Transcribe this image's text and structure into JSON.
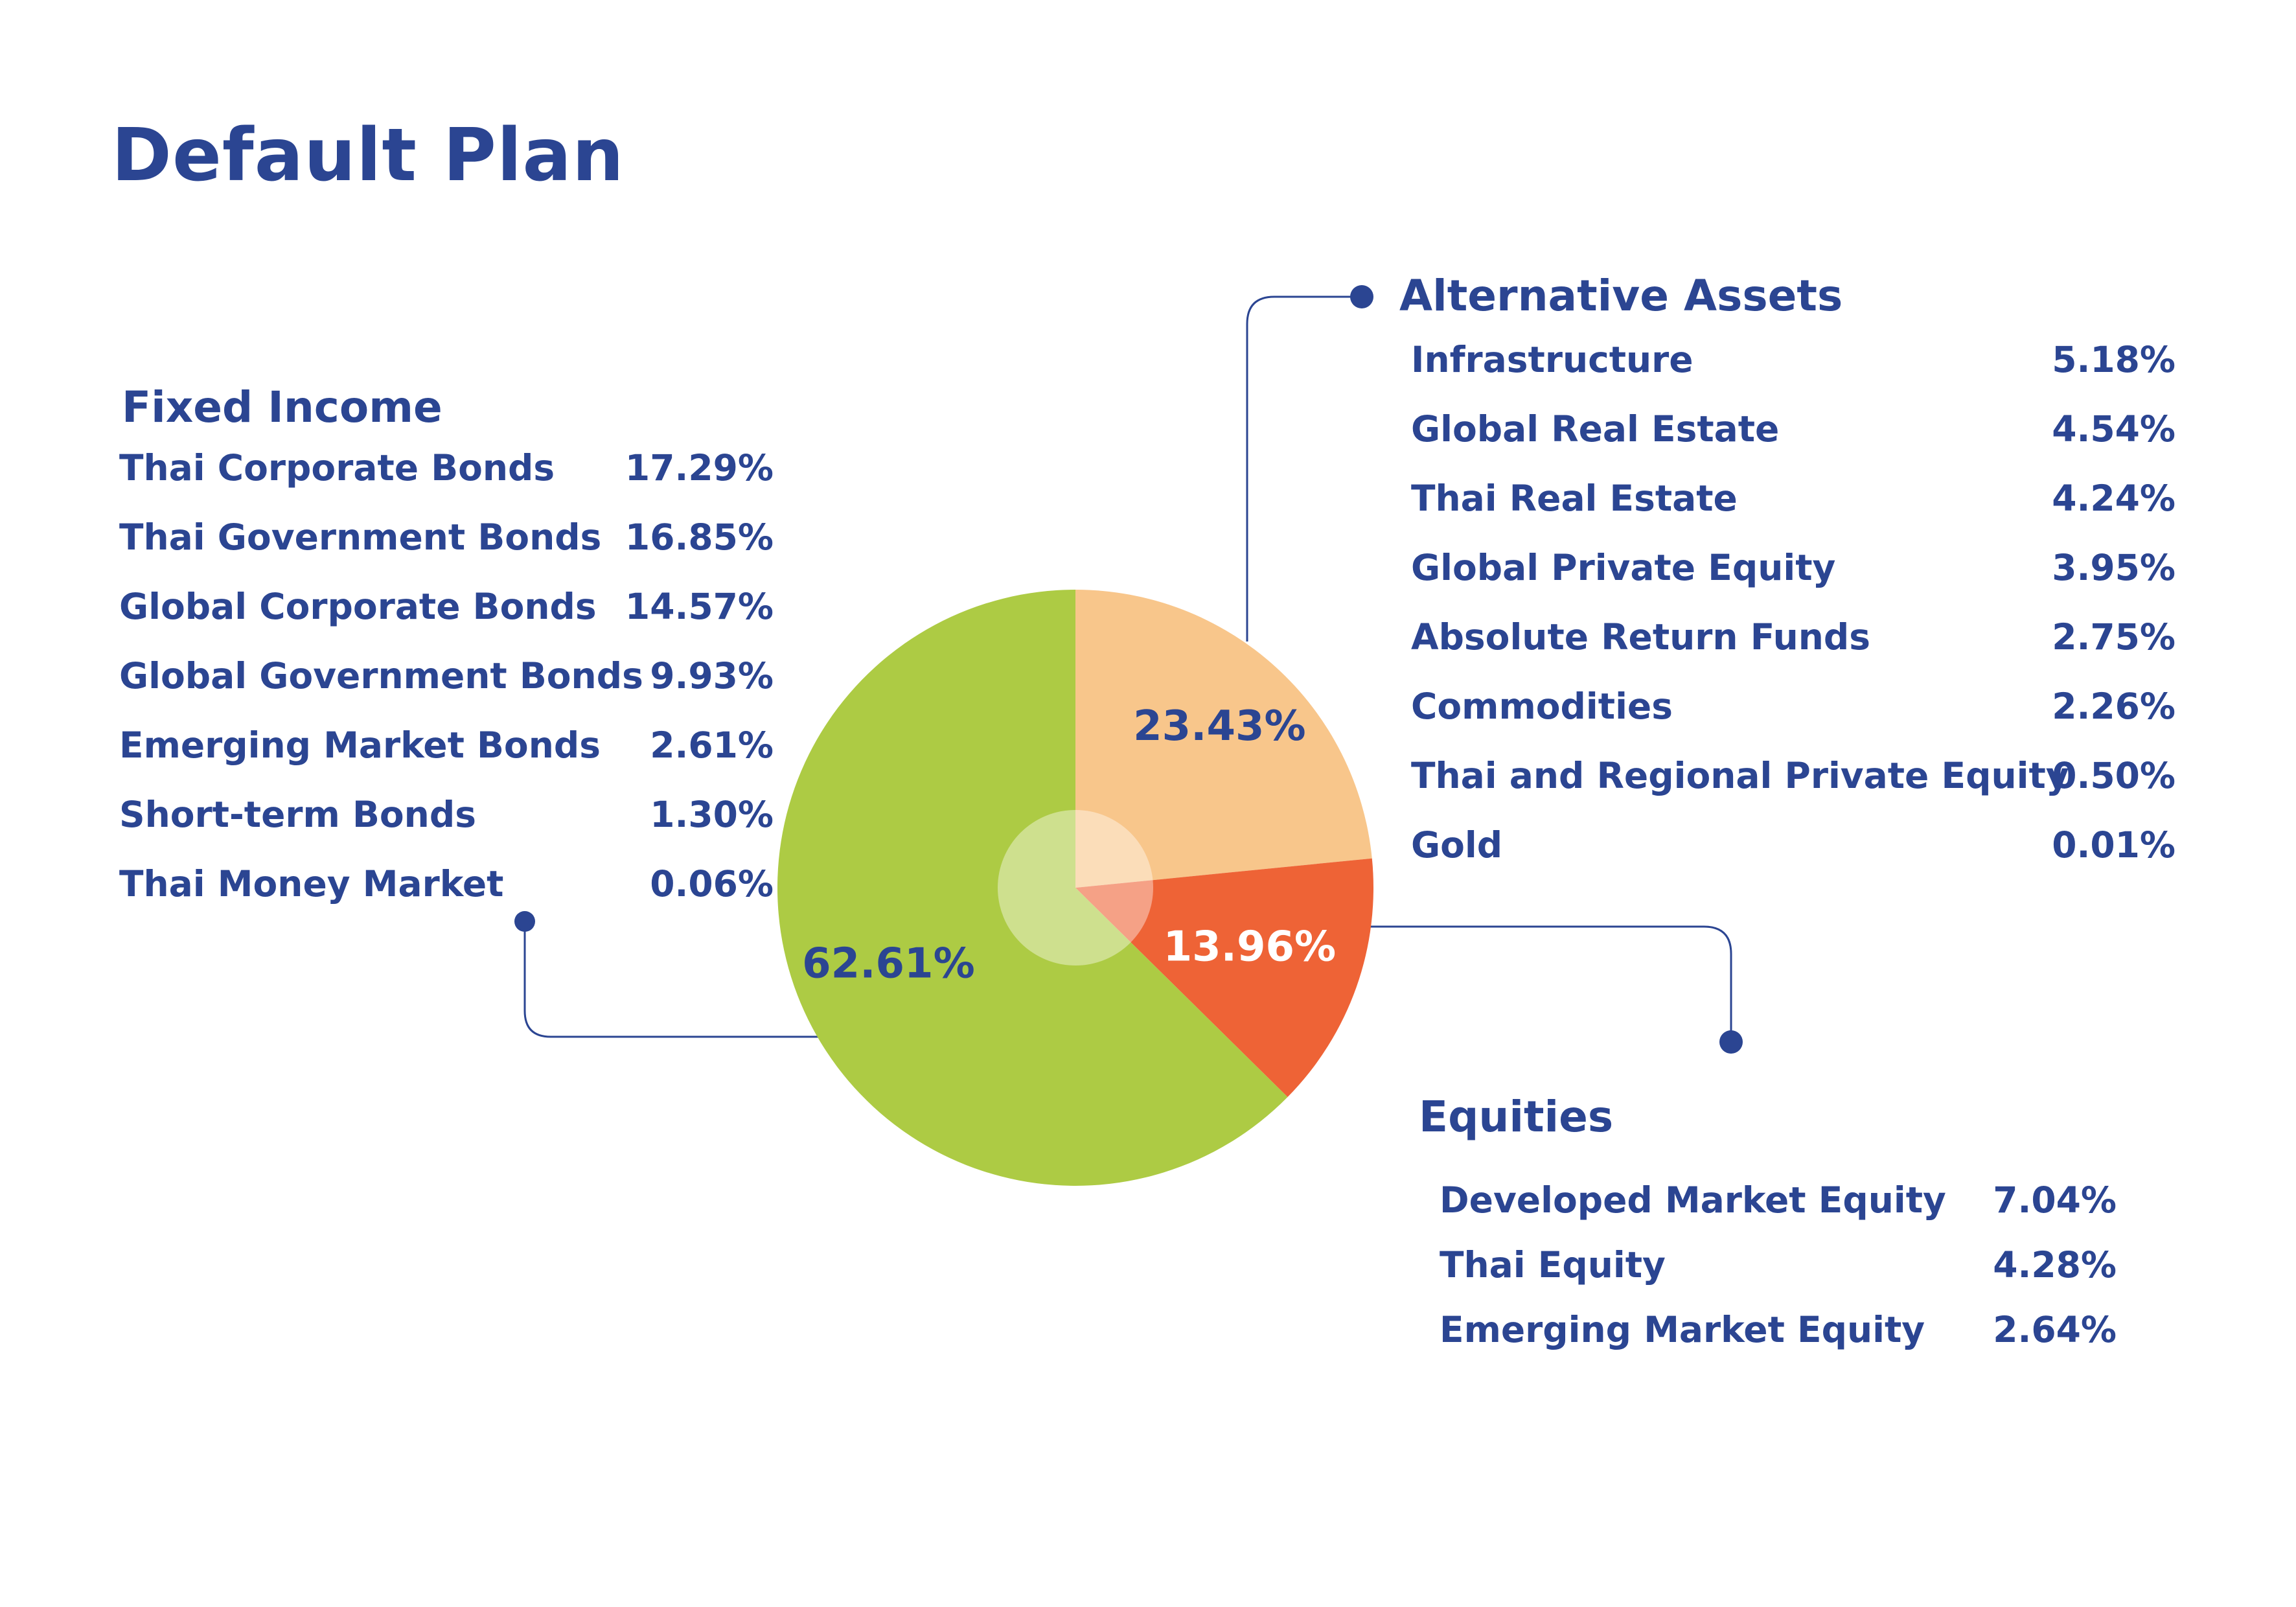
{
  "title": "Default Plan",
  "colors": {
    "text": "#2b4592",
    "fixed_income": "#adcb44",
    "alternative_assets": "#f8c68b",
    "equities": "#ee6336",
    "center_overlay": "#ffffff"
  },
  "chart_data": {
    "type": "pie",
    "start_angle_deg": 0,
    "direction": "clockwise",
    "slices": [
      {
        "name": "Alternative Assets",
        "value": 23.43,
        "label": "23.43%",
        "color": "#f8c68b",
        "label_color": "#2b4592"
      },
      {
        "name": "Equities",
        "value": 13.96,
        "label": "13.96%",
        "color": "#ee6336",
        "label_color": "#ffffff"
      },
      {
        "name": "Fixed Income",
        "value": 62.61,
        "label": "62.61%",
        "color": "#adcb44",
        "label_color": "#2b4592"
      }
    ]
  },
  "groups": {
    "fixed_income": {
      "title": "Fixed Income",
      "items": [
        {
          "label": "Thai Corporate Bonds",
          "value": "17.29%"
        },
        {
          "label": "Thai Government Bonds",
          "value": "16.85%"
        },
        {
          "label": "Global Corporate Bonds",
          "value": "14.57%"
        },
        {
          "label": "Global Government Bonds",
          "value": "9.93%"
        },
        {
          "label": "Emerging Market Bonds",
          "value": "2.61%"
        },
        {
          "label": "Short-term Bonds",
          "value": "1.30%"
        },
        {
          "label": "Thai Money Market",
          "value": "0.06%"
        }
      ]
    },
    "alternative_assets": {
      "title": "Alternative Assets",
      "items": [
        {
          "label": "Infrastructure",
          "value": "5.18%"
        },
        {
          "label": "Global Real Estate",
          "value": "4.54%"
        },
        {
          "label": "Thai Real Estate",
          "value": "4.24%"
        },
        {
          "label": "Global Private Equity",
          "value": "3.95%"
        },
        {
          "label": "Absolute Return Funds",
          "value": "2.75%"
        },
        {
          "label": "Commodities",
          "value": "2.26%"
        },
        {
          "label": "Thai and Regional Private Equity",
          "value": "0.50%"
        },
        {
          "label": "Gold",
          "value": "0.01%"
        }
      ]
    },
    "equities": {
      "title": "Equities",
      "items": [
        {
          "label": "Developed Market Equity",
          "value": "7.04%"
        },
        {
          "label": "Thai Equity",
          "value": "4.28%"
        },
        {
          "label": "Emerging Market Equity",
          "value": "2.64%"
        }
      ]
    }
  }
}
